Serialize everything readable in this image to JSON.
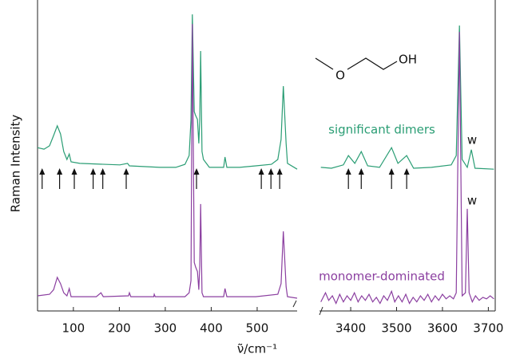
{
  "chart_data": [
    {
      "type": "line",
      "ylabel": "Raman Intensity",
      "xlabel": "ν̃/cm⁻¹",
      "xlim": [
        22,
        587
      ],
      "ylim": [
        0,
        1
      ],
      "xticks": [
        100,
        200,
        300,
        400,
        500
      ],
      "arrows": [
        32,
        70,
        102,
        143,
        164,
        215,
        368,
        509,
        530,
        549
      ],
      "series": [
        {
          "color": "#2a9d74",
          "x": [
            22,
            36,
            48,
            57,
            65,
            72,
            79,
            86,
            91,
            95,
            114,
            201,
            218,
            222,
            288,
            323,
            343,
            352,
            356,
            359,
            363,
            366,
            370,
            373,
            375,
            377,
            380,
            383,
            396,
            427,
            430,
            434,
            462,
            497,
            531,
            545,
            552,
            557,
            563,
            566,
            587
          ],
          "values": [
            0.539,
            0.534,
            0.545,
            0.579,
            0.611,
            0.584,
            0.526,
            0.5,
            0.518,
            0.492,
            0.487,
            0.482,
            0.487,
            0.479,
            0.474,
            0.474,
            0.484,
            0.513,
            0.632,
            0.979,
            0.658,
            0.645,
            0.632,
            0.553,
            0.632,
            0.858,
            0.526,
            0.5,
            0.474,
            0.474,
            0.508,
            0.474,
            0.474,
            0.479,
            0.484,
            0.5,
            0.566,
            0.742,
            0.553,
            0.487,
            0.468
          ]
        },
        {
          "color": "#8b3fa0",
          "x": [
            22,
            48,
            57,
            65,
            72,
            79,
            86,
            91,
            95,
            150,
            160,
            165,
            220,
            222,
            225,
            275,
            276,
            278,
            343,
            352,
            356,
            359,
            363,
            366,
            370,
            373,
            375,
            377,
            380,
            383,
            427,
            430,
            434,
            497,
            545,
            552,
            557,
            563,
            566,
            587
          ],
          "values": [
            0.05,
            0.055,
            0.07,
            0.111,
            0.09,
            0.06,
            0.05,
            0.074,
            0.047,
            0.047,
            0.06,
            0.047,
            0.05,
            0.06,
            0.047,
            0.047,
            0.055,
            0.047,
            0.047,
            0.06,
            0.1,
            0.947,
            0.16,
            0.145,
            0.13,
            0.07,
            0.15,
            0.353,
            0.06,
            0.047,
            0.047,
            0.074,
            0.047,
            0.047,
            0.055,
            0.09,
            0.263,
            0.08,
            0.047,
            0.042
          ]
        }
      ]
    },
    {
      "type": "line",
      "xlim": [
        3332,
        3715
      ],
      "ylim": [
        0,
        1
      ],
      "xticks": [
        3400,
        3500,
        3600,
        3700
      ],
      "arrows": [
        3395,
        3423,
        3489,
        3522
      ],
      "annotations": [
        "w",
        "w"
      ],
      "series": [
        {
          "name": "significant dimers",
          "color": "#2a9d74",
          "x": [
            3335,
            3358,
            3384,
            3395,
            3409,
            3423,
            3437,
            3463,
            3489,
            3503,
            3522,
            3537,
            3576,
            3619,
            3630,
            3637,
            3643,
            3654,
            3663,
            3671,
            3712
          ],
          "values": [
            0.474,
            0.471,
            0.482,
            0.513,
            0.487,
            0.526,
            0.479,
            0.474,
            0.539,
            0.487,
            0.513,
            0.471,
            0.474,
            0.482,
            0.513,
            0.942,
            0.5,
            0.474,
            0.532,
            0.471,
            0.468
          ]
        },
        {
          "name": "monomer-dominated",
          "color": "#8b3fa0",
          "x": [
            3335,
            3345,
            3352,
            3360,
            3368,
            3376,
            3384,
            3392,
            3400,
            3408,
            3416,
            3424,
            3432,
            3440,
            3448,
            3456,
            3464,
            3472,
            3480,
            3489,
            3496,
            3504,
            3512,
            3520,
            3528,
            3536,
            3544,
            3552,
            3560,
            3568,
            3576,
            3584,
            3592,
            3600,
            3608,
            3616,
            3624,
            3630,
            3637,
            3643,
            3650,
            3654,
            3658,
            3665,
            3672,
            3680,
            3688,
            3696,
            3704,
            3712
          ],
          "values": [
            0.03,
            0.06,
            0.035,
            0.05,
            0.025,
            0.055,
            0.03,
            0.05,
            0.035,
            0.06,
            0.03,
            0.05,
            0.035,
            0.055,
            0.03,
            0.045,
            0.025,
            0.05,
            0.035,
            0.065,
            0.03,
            0.05,
            0.03,
            0.055,
            0.025,
            0.045,
            0.03,
            0.05,
            0.035,
            0.055,
            0.03,
            0.05,
            0.035,
            0.055,
            0.04,
            0.05,
            0.04,
            0.06,
            0.921,
            0.05,
            0.06,
            0.337,
            0.06,
            0.03,
            0.05,
            0.035,
            0.045,
            0.04,
            0.05,
            0.04
          ]
        }
      ]
    }
  ],
  "molecule": {
    "ether_oxygen": "O",
    "hydroxyl": "OH"
  }
}
